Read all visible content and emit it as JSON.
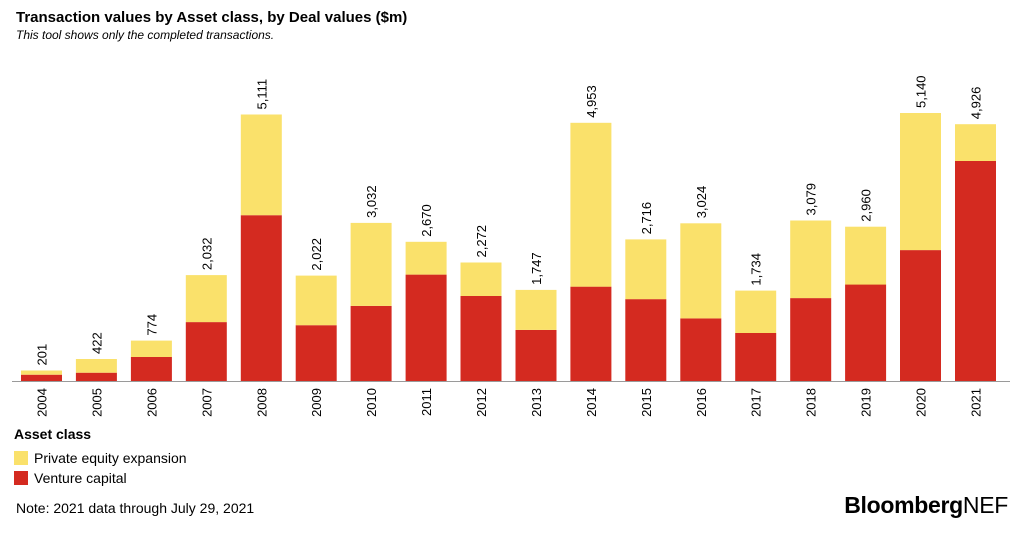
{
  "chart_data": {
    "type": "bar",
    "stacked": true,
    "title": "Transaction values by Asset class, by Deal values ($m)",
    "subtitle": "This tool shows only the completed transactions.",
    "xlabel": "",
    "ylabel": "",
    "ylim": [
      0,
      5500
    ],
    "grid": false,
    "categories": [
      "2004",
      "2005",
      "2006",
      "2007",
      "2008",
      "2009",
      "2010",
      "2011",
      "2012",
      "2013",
      "2014",
      "2015",
      "2016",
      "2017",
      "2018",
      "2019",
      "2020",
      "2021"
    ],
    "series": [
      {
        "name": "Venture capital",
        "color": "#d42a20",
        "values": [
          120,
          160,
          460,
          1130,
          3180,
          1070,
          1440,
          2040,
          1630,
          980,
          1810,
          1570,
          1200,
          920,
          1590,
          1850,
          2510,
          4220
        ]
      },
      {
        "name": "Private equity expansion",
        "color": "#fae16b",
        "values": [
          81,
          262,
          314,
          902,
          1931,
          952,
          1592,
          630,
          642,
          767,
          3143,
          1146,
          1824,
          814,
          1489,
          1110,
          2630,
          706
        ]
      }
    ],
    "totals": [
      201,
      422,
      774,
      2032,
      5111,
      2022,
      3032,
      2670,
      2272,
      1747,
      4953,
      2716,
      3024,
      1734,
      3079,
      2960,
      5140,
      4926
    ],
    "total_labels": [
      "201",
      "422",
      "774",
      "2,032",
      "5,111",
      "2,022",
      "3,032",
      "2,670",
      "2,272",
      "1,747",
      "4,953",
      "2,716",
      "3,024",
      "1,734",
      "3,079",
      "2,960",
      "5,140",
      "4,926"
    ],
    "legend": {
      "title": "Asset class",
      "items": [
        {
          "label": "Private equity expansion",
          "color": "#fae16b"
        },
        {
          "label": "Venture capital",
          "color": "#d42a20"
        }
      ]
    }
  },
  "footer": {
    "note": "Note: 2021 data through July 29, 2021",
    "brand_bold": "Bloomberg",
    "brand_regular": "NEF"
  }
}
